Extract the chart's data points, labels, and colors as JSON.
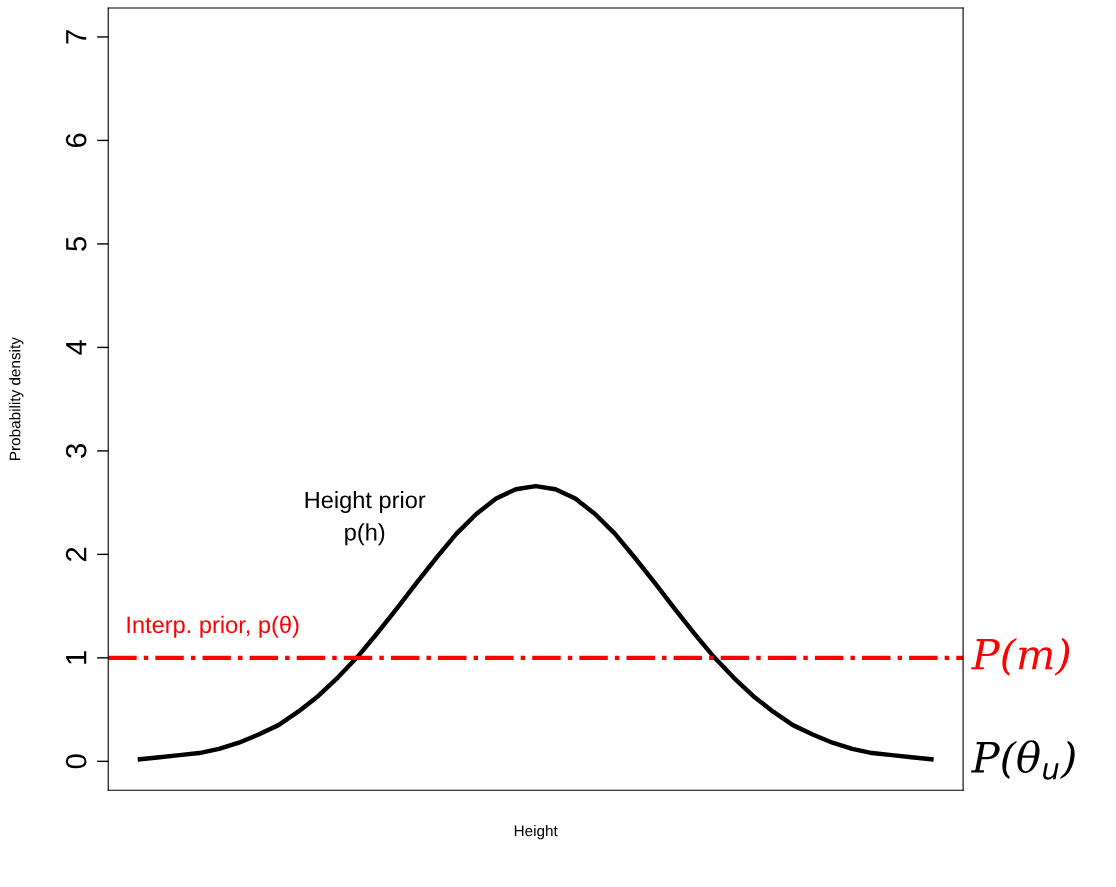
{
  "chart_data": {
    "type": "line",
    "xlabel": "Height",
    "ylabel": "Probability density",
    "categories": [
      null,
      null,
      null,
      null,
      null,
      null,
      null,
      null,
      null,
      null,
      null,
      null,
      null,
      null,
      null,
      null,
      null,
      null,
      null,
      null,
      null,
      null,
      null,
      null,
      null,
      null,
      null,
      null,
      null,
      null,
      null,
      null,
      null,
      null,
      null,
      null,
      null,
      null,
      null,
      null,
      null
    ],
    "series": [
      {
        "color": "#000000",
        "values": [
          0.02,
          0.04,
          0.06,
          0.08,
          0.12,
          0.18,
          0.26,
          0.35,
          0.48,
          0.63,
          0.81,
          1.01,
          1.24,
          1.48,
          1.73,
          1.97,
          2.2,
          2.39,
          2.54,
          2.63,
          2.66,
          2.63,
          2.54,
          2.39,
          2.2,
          1.97,
          1.73,
          1.48,
          1.24,
          1.01,
          0.81,
          0.63,
          0.48,
          0.35,
          0.26,
          0.18,
          0.12,
          0.08,
          0.06,
          0.04,
          0.02
        ]
      }
    ],
    "ylim": [
      -0.28,
      7.28
    ],
    "yticks": [
      0,
      1,
      2,
      3,
      4,
      5,
      6,
      7
    ],
    "grid": false,
    "marker": "none",
    "line_style": "solid",
    "ref_lines": [
      {
        "axis": "y",
        "value": 1,
        "label": "P(m)",
        "color": "#ff0000",
        "line_style": "dashdot"
      }
    ],
    "annotations": [
      "Height prior\np(h)",
      {
        "text": "Interp. prior, p(θ)",
        "y": 1
      },
      "P(θ$_{u}$)"
    ]
  }
}
